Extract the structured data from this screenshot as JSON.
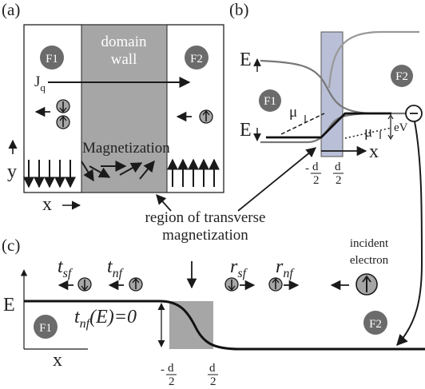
{
  "panels": {
    "a": {
      "label": "(a)",
      "f1": "F1",
      "f2": "F2",
      "wall_line1": "domain",
      "wall_line2": "wall",
      "current_main": "J",
      "current_sub": "q",
      "magnetization": "Magnetization",
      "y_axis": "y",
      "x_axis": "x"
    },
    "b": {
      "label": "(b)",
      "e_up_main": "E",
      "e_down_main": "E",
      "mu_up_main": "μ",
      "mu_down_main": "μ",
      "f1": "F1",
      "f2": "F2",
      "voltage": "eV",
      "x_axis": "x",
      "minus": "-",
      "d": "d",
      "two": "2"
    },
    "c": {
      "label": "(c)",
      "e_axis": "E",
      "x_axis": "x",
      "f1": "F1",
      "f2": "F2",
      "t_sf_main": "t",
      "t_sf_sub": "sf",
      "t_nf_main": "t",
      "t_nf_sub": "nf",
      "r_sf_main": "r",
      "r_sf_sub": "sf",
      "r_nf_main": "r",
      "r_nf_sub": "nf",
      "tnf_eq_main": "t",
      "tnf_eq_sub": "nf",
      "tnf_eq_rest": "(E)=0",
      "incident_line1": "incident",
      "incident_line2": "electron",
      "minus": "-",
      "d": "d",
      "two": "2"
    },
    "shared": {
      "region_line1": "region of transverse",
      "region_line2": "magnetization"
    }
  },
  "colors": {
    "wall_gray": "#a6a6a6",
    "band_blue": "#b9bfd6",
    "circle_dark": "#6b6b6b",
    "ink": "#1a1a1a"
  }
}
